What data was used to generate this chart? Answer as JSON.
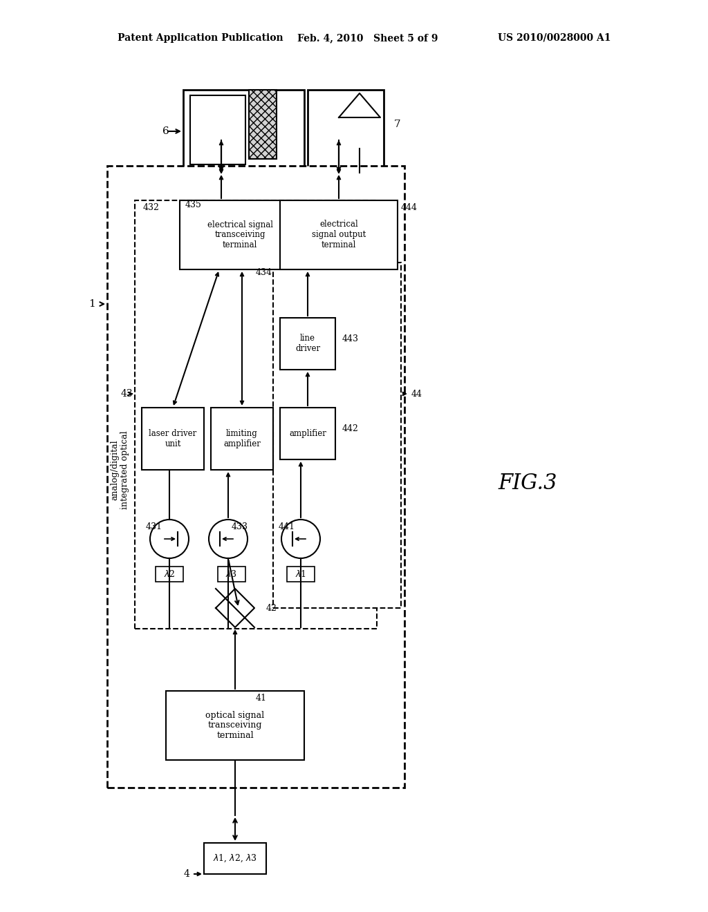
{
  "bg_color": "#ffffff",
  "header_left": "Patent Application Publication",
  "header_mid": "Feb. 4, 2010   Sheet 5 of 9",
  "header_right": "US 2010/0028000 A1",
  "fig_label": "FIG.3",
  "title_note": "analog/digital integrated optical"
}
